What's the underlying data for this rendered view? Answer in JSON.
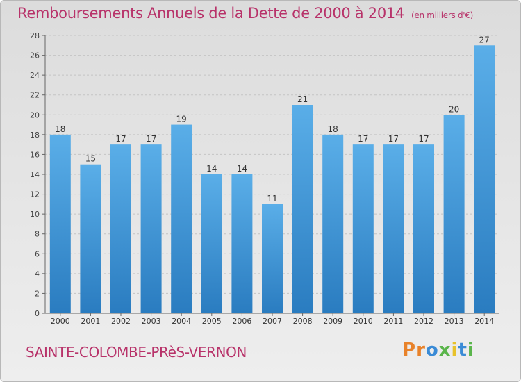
{
  "header": {
    "title": "Remboursements Annuels de la Dette de 2000 à 2014",
    "subtitle": "(en milliers d'€)"
  },
  "footer": {
    "city": "SAINTE-COLOMBE-PRèS-VERNON",
    "logo_text": "Proxiti"
  },
  "colors": {
    "title": "#b8336a",
    "bar_top": "#5aaee8",
    "bar_bottom": "#2a7cc0"
  },
  "chart_data": {
    "type": "bar",
    "title": "Remboursements Annuels de la Dette de 2000 à 2014",
    "xlabel": "",
    "ylabel": "(en milliers d'€)",
    "categories": [
      "2000",
      "2001",
      "2002",
      "2003",
      "2004",
      "2005",
      "2006",
      "2007",
      "2008",
      "2009",
      "2010",
      "2011",
      "2012",
      "2013",
      "2014"
    ],
    "values": [
      18,
      15,
      17,
      17,
      19,
      14,
      14,
      11,
      21,
      18,
      17,
      17,
      17,
      20,
      27
    ],
    "ylim": [
      0,
      28
    ],
    "yticks": [
      0,
      2,
      4,
      6,
      8,
      10,
      12,
      14,
      16,
      18,
      20,
      22,
      24,
      26,
      28
    ],
    "grid": true,
    "legend": "none"
  }
}
